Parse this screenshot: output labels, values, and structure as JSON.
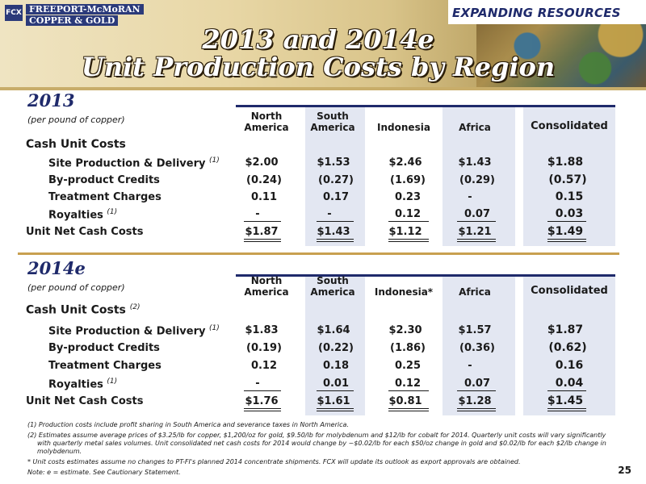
{
  "header": {
    "tagline": "EXPANDING RESOURCES",
    "logo_mark": "FCX",
    "logo_line1": "FREEPORT-McMoRAN",
    "logo_line2": "COPPER & GOLD",
    "title_line1": "2013 and 2014e",
    "title_line2": "Unit Production Costs by Region"
  },
  "columns": [
    "North America",
    "South America",
    "Indonesia",
    "Africa",
    "Consolidated"
  ],
  "section_2013": {
    "year": "2013",
    "per_pound": "(per pound of copper)",
    "col_north_1": "North",
    "col_north_2": "America",
    "col_south_1": "South",
    "col_south_2": "America",
    "col_indonesia": "Indonesia",
    "col_africa": "Africa",
    "col_consolidated": "Consolidated",
    "cash_label": "Cash Unit Costs",
    "rows": [
      {
        "label": "Site Production & Delivery",
        "note": "(1)",
        "values": [
          "$2.00",
          "$1.53",
          "$2.46",
          "$1.43",
          "$1.88"
        ]
      },
      {
        "label": "By-product Credits",
        "note": "",
        "values": [
          "(0.24)",
          "(0.27)",
          "(1.69)",
          "(0.29)",
          "(0.57)"
        ]
      },
      {
        "label": "Treatment Charges",
        "note": "",
        "values": [
          "0.11",
          "0.17",
          "0.23",
          "-",
          "0.15"
        ]
      },
      {
        "label": "Royalties",
        "note": "(1)",
        "values": [
          "-",
          "-",
          "0.12",
          "0.07",
          "0.03"
        ]
      }
    ],
    "total": {
      "label": "Unit Net Cash Costs",
      "values": [
        "$1.87",
        "$1.43",
        "$1.12",
        "$1.21",
        "$1.49"
      ]
    }
  },
  "section_2014": {
    "year": "2014e",
    "per_pound": "(per pound of copper)",
    "col_north_1": "North",
    "col_north_2": "America",
    "col_south_1": "South",
    "col_south_2": "America",
    "col_indonesia": "Indonesia*",
    "col_africa": "Africa",
    "col_consolidated": "Consolidated",
    "cash_label": "Cash Unit Costs",
    "cash_note": "(2)",
    "rows": [
      {
        "label": "Site Production & Delivery",
        "note": "(1)",
        "values": [
          "$1.83",
          "$1.64",
          "$2.30",
          "$1.57",
          "$1.87"
        ]
      },
      {
        "label": "By-product Credits",
        "note": "",
        "values": [
          "(0.19)",
          "(0.22)",
          "(1.86)",
          "(0.36)",
          "(0.62)"
        ]
      },
      {
        "label": "Treatment Charges",
        "note": "",
        "values": [
          "0.12",
          "0.18",
          "0.25",
          "-",
          "0.16"
        ]
      },
      {
        "label": "Royalties",
        "note": "(1)",
        "values": [
          "-",
          "0.01",
          "0.12",
          "0.07",
          "0.04"
        ]
      }
    ],
    "total": {
      "label": "Unit Net Cash Costs",
      "values": [
        "$1.76",
        "$1.61",
        "$0.81",
        "$1.28",
        "$1.45"
      ]
    }
  },
  "footnotes": {
    "fn1": "(1) Production costs include profit sharing in South America and severance taxes in North America.",
    "fn2": "(2) Estimates assume average prices of $3.25/lb for copper, $1,200/oz for gold, $9.50/lb for molybdenum and $12/lb for cobalt for 2014. Quarterly unit costs will vary significantly with quarterly metal sales volumes. Unit consolidated net cash costs for 2014 would change by ~$0.02/lb for each $50/oz change in gold and $0.02/lb for each $2/lb change in molybdenum.",
    "fn3": "* Unit costs estimates assume no changes to PT-FI's planned 2014 concentrate shipments. FCX will update its outlook as export approvals are obtained.",
    "fn4": "Note: e = estimate. See Cautionary Statement."
  },
  "page_number": "25",
  "colors": {
    "navy": "#1f2a6b",
    "column_shade": "#e3e7f2",
    "gold_rule": "#c8a050"
  }
}
